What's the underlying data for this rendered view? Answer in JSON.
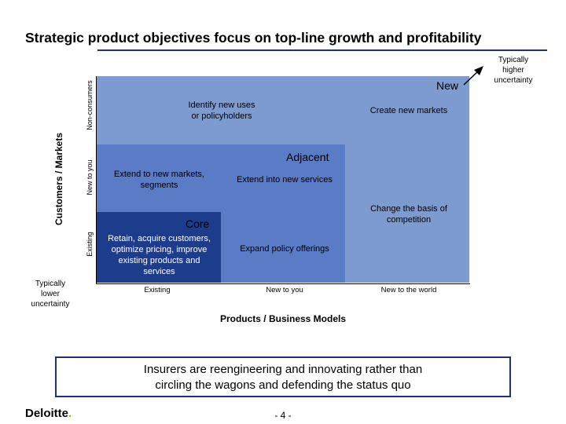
{
  "title": "Strategic product objectives focus on top-line growth and profitability",
  "matrix": {
    "zones": {
      "new": "New",
      "adjacent": "Adjacent",
      "core": "Core"
    },
    "cells": {
      "identify": "Identify new uses\nor policyholders",
      "create": "Create new markets",
      "extend_markets": "Extend to new markets,\nsegments",
      "extend_services": "Extend into new services",
      "change_basis": "Change the basis of\ncompetition",
      "retain": "Retain, acquire customers,\noptimize pricing, improve\nexisting products and\nservices",
      "expand": "Expand policy offerings"
    },
    "y_axis": {
      "label": "Customers / Markets",
      "ticks": [
        "Existing",
        "New to you",
        "Non-consumers"
      ]
    },
    "x_axis": {
      "label": "Products / Business Models",
      "ticks": [
        "Existing",
        "New to you",
        "New to the world"
      ]
    },
    "corner_notes": {
      "top_right": "Typically\nhigher\nuncertainty",
      "bottom_left": "Typically\nlower\nuncertainty"
    }
  },
  "callout": "Insurers are reengineering and innovating rather than\ncircling the wagons and defending the status quo",
  "footer": {
    "logo": "Deloitte",
    "logo_dot": ".",
    "page": "- 4 -"
  },
  "colors": {
    "new_zone": "#7e9bd0",
    "adjacent_zone": "#5a7bc6",
    "core_zone": "#1d3c8c",
    "accent": "#1f2f7a",
    "logo_dot": "#86bc25"
  }
}
